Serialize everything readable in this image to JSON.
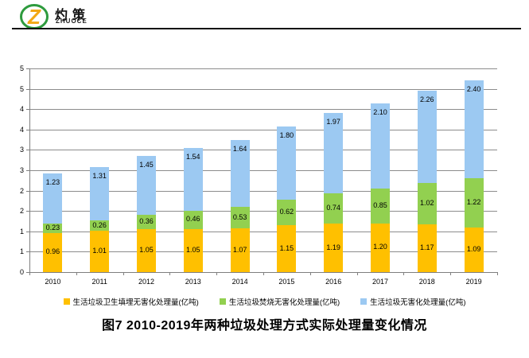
{
  "header": {
    "brand": "灼策",
    "brand_sub": "ZHUOCE",
    "logo_ring_color": "#2E9B3E",
    "logo_z_color": "#F2A814"
  },
  "chart_data": {
    "type": "bar",
    "subtype": "stacked",
    "title": "图7  2010-2019年两种垃圾处理方式实际处理量变化情况",
    "categories": [
      "2010",
      "2011",
      "2012",
      "2013",
      "2014",
      "2015",
      "2016",
      "2017",
      "2018",
      "2019"
    ],
    "series": [
      {
        "name": "生活垃圾卫生填埋无害化处理量(亿吨)",
        "color": "#FFC000",
        "label_position": "center",
        "values": [
          0.96,
          1.01,
          1.05,
          1.05,
          1.07,
          1.15,
          1.19,
          1.2,
          1.17,
          1.09
        ]
      },
      {
        "name": "生活垃圾焚烧无害化处理量(亿吨)",
        "color": "#92D050",
        "label_position": "center",
        "values": [
          0.23,
          0.26,
          0.36,
          0.46,
          0.53,
          0.62,
          0.74,
          0.85,
          1.02,
          1.22
        ]
      },
      {
        "name": "生活垃圾无害化处理量(亿吨)",
        "color": "#9CC9F2",
        "label_position": "inside-end",
        "values": [
          1.23,
          1.31,
          1.45,
          1.54,
          1.64,
          1.8,
          1.97,
          2.1,
          2.26,
          2.4
        ]
      }
    ],
    "ylim": [
      0,
      5
    ],
    "ytick_step": 0.5,
    "ytick_labels_bottom_to_top": [
      "0",
      "1",
      "1",
      "2",
      "2",
      "3",
      "3",
      "4",
      "4",
      "5",
      "5"
    ],
    "value_decimals": 2,
    "grid": true,
    "gridline_color": "#8C8C8C",
    "axis_color": "#7F7F7F",
    "legend_position": "bottom"
  }
}
